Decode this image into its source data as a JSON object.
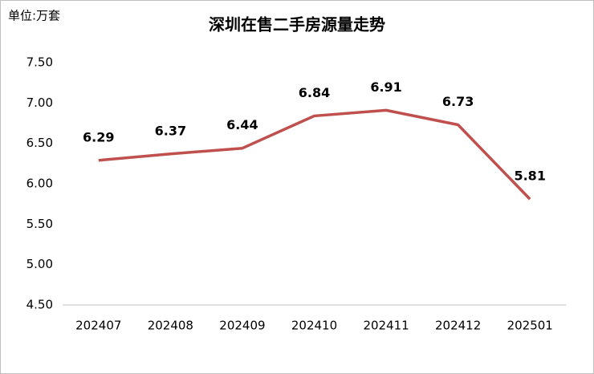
{
  "chart_data": {
    "type": "line",
    "title": "深圳在售二手房源量走势",
    "unit_label": "单位:万套",
    "categories": [
      "202407",
      "202408",
      "202409",
      "202410",
      "202411",
      "202412",
      "202501"
    ],
    "values": [
      6.29,
      6.37,
      6.44,
      6.84,
      6.91,
      6.73,
      5.81
    ],
    "color": "#c0504d",
    "ylim": [
      4.5,
      7.5
    ],
    "yticks": [
      {
        "value": 4.5,
        "label": "4.50"
      },
      {
        "value": 5,
        "label": "5.00"
      },
      {
        "value": 5.5,
        "label": "5.50"
      },
      {
        "value": 6,
        "label": "6.00"
      },
      {
        "value": 6.5,
        "label": "6.50"
      },
      {
        "value": 7,
        "label": "7.00"
      },
      {
        "value": 7.5,
        "label": "7.50"
      }
    ],
    "grid": false
  }
}
